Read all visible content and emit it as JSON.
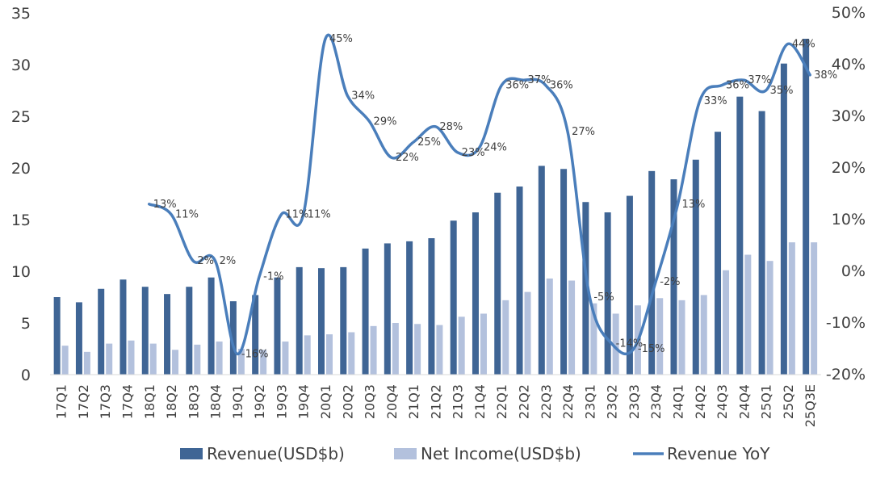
{
  "chart_data": {
    "type": "bar",
    "categories": [
      "17Q1",
      "17Q2",
      "17Q3",
      "17Q4",
      "18Q1",
      "18Q2",
      "18Q3",
      "18Q4",
      "19Q1",
      "19Q2",
      "19Q3",
      "19Q4",
      "20Q1",
      "20Q2",
      "20Q3",
      "20Q4",
      "21Q1",
      "21Q2",
      "21Q3",
      "21Q4",
      "22Q1",
      "22Q2",
      "22Q3",
      "22Q4",
      "23Q1",
      "23Q2",
      "23Q3",
      "23Q4",
      "24Q1",
      "24Q2",
      "24Q3",
      "24Q4",
      "25Q1",
      "25Q2",
      "25Q3E"
    ],
    "series": [
      {
        "name": "Revenue(USD$b)",
        "type": "bar",
        "axis": "left",
        "color": "#3f6595",
        "values": [
          7.5,
          7.0,
          8.3,
          9.2,
          8.5,
          7.8,
          8.5,
          9.4,
          7.1,
          7.7,
          9.4,
          10.4,
          10.3,
          10.4,
          12.2,
          12.7,
          12.9,
          13.2,
          14.9,
          15.7,
          17.6,
          18.2,
          20.2,
          19.9,
          16.7,
          15.7,
          17.3,
          19.7,
          18.9,
          20.8,
          23.5,
          26.9,
          25.5,
          30.1,
          32.5
        ]
      },
      {
        "name": "Net Income(USD$b)",
        "type": "bar",
        "axis": "left",
        "color": "#b3c1dd",
        "values": [
          2.8,
          2.2,
          3.0,
          3.3,
          3.0,
          2.4,
          2.9,
          3.2,
          2.5,
          2.4,
          3.2,
          3.8,
          3.9,
          4.1,
          4.7,
          5.0,
          4.9,
          4.8,
          5.6,
          5.9,
          7.2,
          8.0,
          9.3,
          9.1,
          6.9,
          5.9,
          6.7,
          7.4,
          7.2,
          7.7,
          10.1,
          11.6,
          11.0,
          12.8,
          12.8
        ]
      },
      {
        "name": "Revenue YoY",
        "type": "line",
        "axis": "right",
        "color": "#4a7ebb",
        "values": [
          null,
          null,
          null,
          null,
          13,
          11,
          2,
          2,
          -16,
          -1,
          11,
          11,
          45,
          34,
          29,
          22,
          25,
          28,
          23,
          24,
          36,
          37,
          36,
          27,
          -5,
          -14,
          -15,
          -2,
          13,
          33,
          36,
          37,
          35,
          44,
          38
        ],
        "labels": [
          "",
          "",
          "",
          "",
          "13%",
          "11%",
          "2%",
          "2%",
          "-16%",
          "-1%",
          "11%",
          "11%",
          "45%",
          "34%",
          "29%",
          "22%",
          "25%",
          "28%",
          "23%",
          "24%",
          "36%",
          "37%",
          "36%",
          "27%",
          "-5%",
          "-14%",
          "-15%",
          "-2%",
          "13%",
          "33%",
          "36%",
          "37%",
          "35%",
          "44%",
          "38%"
        ]
      }
    ],
    "y_left": {
      "ylim": [
        0,
        35
      ],
      "ticks": [
        "0",
        "5",
        "10",
        "15",
        "20",
        "25",
        "30",
        "35"
      ]
    },
    "y_right": {
      "ylim": [
        -20,
        50
      ],
      "ticks": [
        "-20%",
        "-10%",
        "0%",
        "10%",
        "20%",
        "30%",
        "40%",
        "50%"
      ]
    },
    "grid": false,
    "legend_position": "bottom"
  }
}
